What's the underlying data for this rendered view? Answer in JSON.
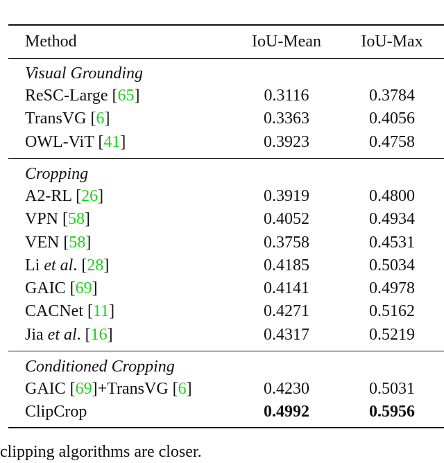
{
  "table": {
    "header": [
      "Method",
      "IoU-Mean",
      "IoU-Max"
    ],
    "groups": [
      {
        "title": "Visual Grounding",
        "rows": [
          {
            "method": [
              {
                "t": "ReSC-Large ["
              },
              {
                "t": "65",
                "cite": true
              },
              {
                "t": "]"
              }
            ],
            "values": [
              "0.3116",
              "0.3784"
            ]
          },
          {
            "method": [
              {
                "t": "TransVG ["
              },
              {
                "t": "6",
                "cite": true
              },
              {
                "t": "]"
              }
            ],
            "values": [
              "0.3363",
              "0.4056"
            ]
          },
          {
            "method": [
              {
                "t": "OWL-ViT ["
              },
              {
                "t": "41",
                "cite": true
              },
              {
                "t": "]"
              }
            ],
            "values": [
              "0.3923",
              "0.4758"
            ]
          }
        ]
      },
      {
        "title": "Cropping",
        "rows": [
          {
            "method": [
              {
                "t": "A2-RL ["
              },
              {
                "t": "26",
                "cite": true
              },
              {
                "t": "]"
              }
            ],
            "values": [
              "0.3919",
              "0.4800"
            ]
          },
          {
            "method": [
              {
                "t": "VPN ["
              },
              {
                "t": "58",
                "cite": true
              },
              {
                "t": "]"
              }
            ],
            "values": [
              "0.4052",
              "0.4934"
            ]
          },
          {
            "method": [
              {
                "t": "VEN ["
              },
              {
                "t": "58",
                "cite": true
              },
              {
                "t": "]"
              }
            ],
            "values": [
              "0.3758",
              "0.4531"
            ]
          },
          {
            "method": [
              {
                "t": "Li "
              },
              {
                "t": "et al",
                "em": true
              },
              {
                "t": ". ["
              },
              {
                "t": "28",
                "cite": true
              },
              {
                "t": "]"
              }
            ],
            "values": [
              "0.4185",
              "0.5034"
            ]
          },
          {
            "method": [
              {
                "t": "GAIC ["
              },
              {
                "t": "69",
                "cite": true
              },
              {
                "t": "]"
              }
            ],
            "values": [
              "0.4141",
              "0.4978"
            ]
          },
          {
            "method": [
              {
                "t": "CACNet ["
              },
              {
                "t": "11",
                "cite": true
              },
              {
                "t": "]"
              }
            ],
            "values": [
              "0.4271",
              "0.5162"
            ]
          },
          {
            "method": [
              {
                "t": "Jia "
              },
              {
                "t": "et al",
                "em": true
              },
              {
                "t": ". ["
              },
              {
                "t": "16",
                "cite": true
              },
              {
                "t": "]"
              }
            ],
            "values": [
              "0.4317",
              "0.5219"
            ]
          }
        ]
      },
      {
        "title": "Conditioned Cropping",
        "rows": [
          {
            "method": [
              {
                "t": "GAIC ["
              },
              {
                "t": "69",
                "cite": true
              },
              {
                "t": "]+TransVG ["
              },
              {
                "t": "6",
                "cite": true
              },
              {
                "t": "]"
              }
            ],
            "values": [
              "0.4230",
              "0.5031"
            ]
          },
          {
            "method": [
              {
                "t": "ClipCrop"
              }
            ],
            "values": [
              "0.4992",
              "0.5956"
            ],
            "bold": true
          }
        ]
      }
    ]
  },
  "footer": "clipping algorithms are closer."
}
